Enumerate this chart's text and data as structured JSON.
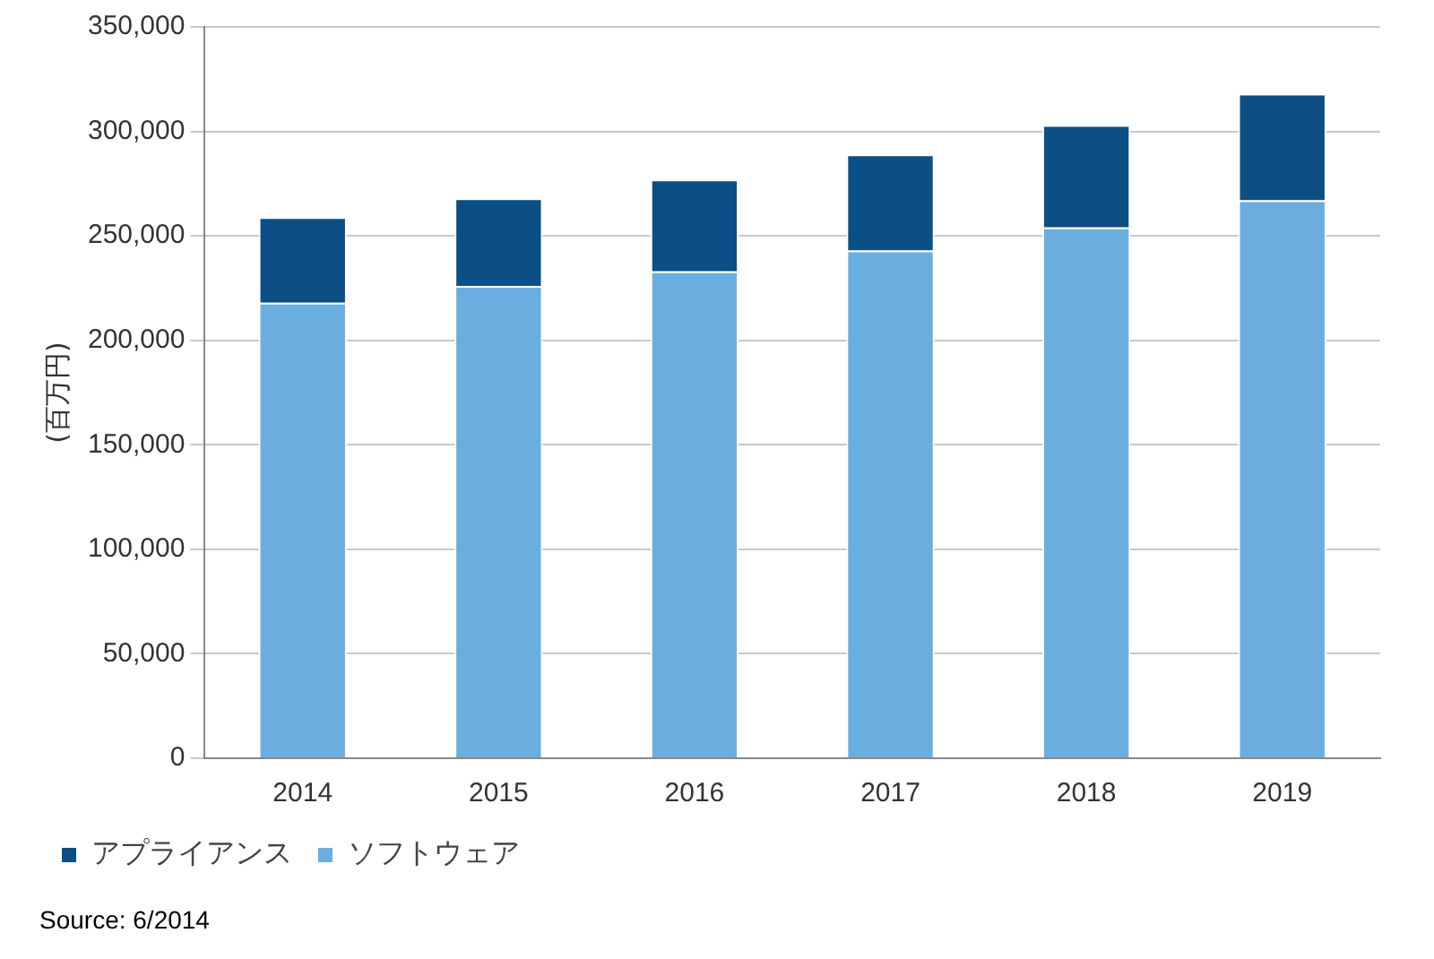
{
  "chart_data": {
    "type": "bar",
    "stacked": true,
    "ylabel": "(百万円)",
    "categories": [
      "2014",
      "2015",
      "2016",
      "2017",
      "2018",
      "2019"
    ],
    "series": [
      {
        "name": "ソフトウェア",
        "color": "#6aaee0",
        "values": [
          218000,
          226000,
          233000,
          243000,
          254000,
          267000
        ]
      },
      {
        "name": "アプライアンス",
        "color": "#0b4f84",
        "values": [
          41000,
          42000,
          44000,
          46000,
          49000,
          51000
        ]
      }
    ],
    "ylim": [
      0,
      350000
    ],
    "yticks": [
      0,
      {
        "value": 50000,
        "label": "50,000"
      },
      {
        "value": 100000,
        "label": "100,000"
      },
      {
        "value": 150000,
        "label": "150,000"
      },
      {
        "value": 200000,
        "label": "200,000"
      },
      {
        "value": 250000,
        "label": "250,000"
      },
      {
        "value": 300000,
        "label": "300,000"
      },
      {
        "value": 350000,
        "label": "350,000"
      }
    ],
    "grid": "y",
    "legend": "bottom left",
    "annotations": [
      "Source: 6/2014"
    ]
  }
}
